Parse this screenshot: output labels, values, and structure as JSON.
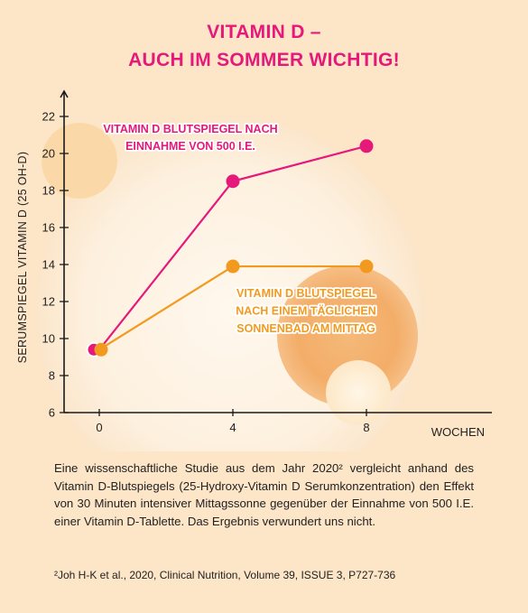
{
  "title_line1": "VITAMIN D –",
  "title_line2": "AUCH IM SOMMER WICHTIG!",
  "chart_data": {
    "type": "line",
    "title": "VITAMIN D – AUCH IM SOMMER WICHTIG!",
    "xlabel": "WOCHEN",
    "ylabel": "SERUMSPIEGEL VITAMIN D (25 OH-D)",
    "x_ticks": [
      "0",
      "4",
      "8"
    ],
    "y_ticks": [
      "6",
      "8",
      "10",
      "12",
      "14",
      "16",
      "18",
      "20",
      "22"
    ],
    "xlim": [
      -1,
      13
    ],
    "ylim": [
      6,
      22.5
    ],
    "grid": false,
    "series": [
      {
        "name": "VITAMIN D BLUTSPIEGEL NACH EINNAHME VON 500 I.E.",
        "label_lines": [
          "VITAMIN D BLUTSPIEGEL NACH",
          "EINNAHME VON 500 I.E."
        ],
        "color": "#e6197a",
        "x": [
          0,
          4,
          8
        ],
        "y": [
          9.4,
          18.5,
          20.4
        ]
      },
      {
        "name": "VITAMIN D BLUTSPIEGEL NACH EINEM TÄGLICHEN SONNENBAD AM MITTAG",
        "label_lines": [
          "VITAMIN D BLUTSPIEGEL",
          "NACH EINEM TÄGLICHEN",
          "SONNENBAD AM MITTAG"
        ],
        "color": "#f29a1f",
        "x": [
          0,
          4,
          8
        ],
        "y": [
          9.4,
          13.9,
          13.9
        ]
      }
    ]
  },
  "description": "Eine wissenschaftliche Studie aus dem Jahr 2020² vergleicht anhand des Vitamin D-Blutspiegels (25-Hydroxy-Vitamin D Serumkonzentration) den Effekt von 30 Minuten intensiver Mittagssonne gegenüber der Einnahme von 500 I.E. einer Vitamin D-Tablette. Das Ergebnis verwundert uns nicht.",
  "footnote": "²Joh H-K et al., 2020, Clinical Nutrition, Volume 39, ISSUE 3, P727-736"
}
